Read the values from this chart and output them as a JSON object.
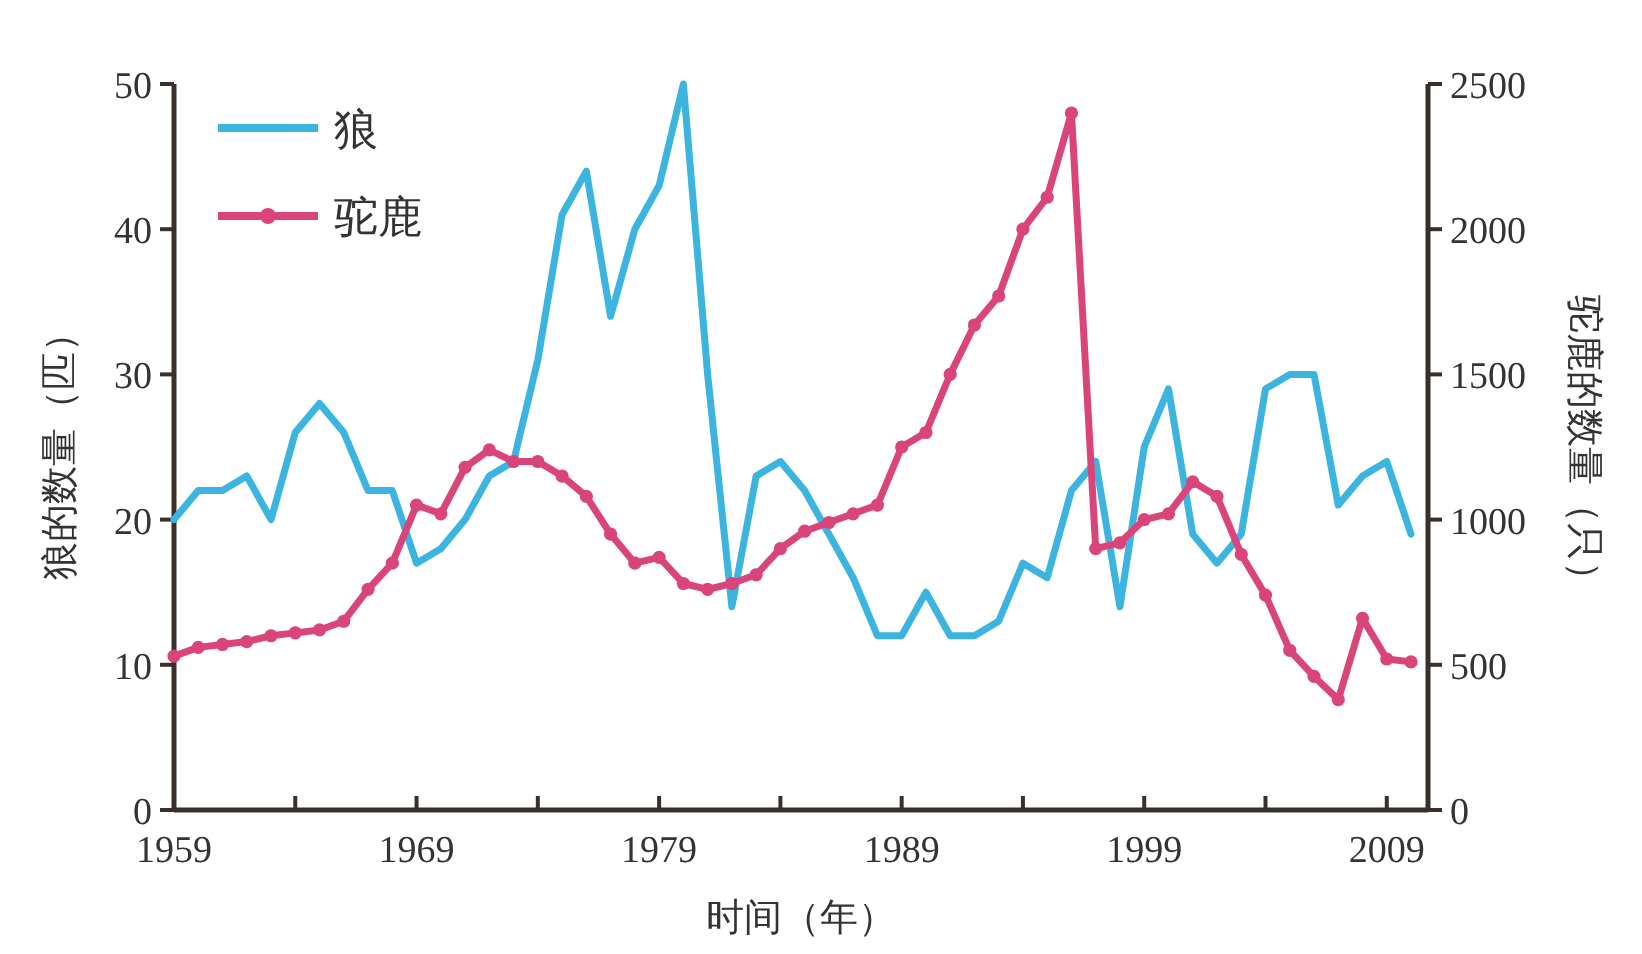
{
  "chart_data": {
    "type": "line",
    "xlabel": "时间（年）",
    "ylabel": "狼的数量（匹）",
    "y2label": "驼鹿的数量（只）",
    "x": [
      1959,
      1960,
      1961,
      1962,
      1963,
      1964,
      1965,
      1966,
      1967,
      1968,
      1969,
      1970,
      1971,
      1972,
      1973,
      1974,
      1975,
      1976,
      1977,
      1978,
      1979,
      1980,
      1981,
      1982,
      1983,
      1984,
      1985,
      1986,
      1987,
      1988,
      1989,
      1990,
      1991,
      1992,
      1993,
      1994,
      1995,
      1996,
      1997,
      1998,
      1999,
      2000,
      2001,
      2002,
      2003,
      2004,
      2005,
      2006,
      2007,
      2008,
      2009,
      2010
    ],
    "series": [
      {
        "name": "狼",
        "color": "#3bb4e0",
        "marker": "none",
        "values": [
          20,
          22,
          22,
          23,
          20,
          26,
          28,
          26,
          22,
          22,
          17,
          18,
          20,
          23,
          24,
          31,
          41,
          44,
          34,
          40,
          43,
          50,
          30,
          14,
          23,
          24,
          22,
          19,
          16,
          12,
          12,
          15,
          12,
          12,
          13,
          17,
          16,
          22,
          24,
          14,
          25,
          29,
          19,
          17,
          19,
          29,
          30,
          30,
          21,
          23,
          24,
          19
        ]
      },
      {
        "name": "驼鹿",
        "color": "#d9457a",
        "marker": "circle",
        "axis": "y2",
        "values": [
          530,
          560,
          570,
          580,
          600,
          610,
          620,
          650,
          760,
          850,
          1050,
          1020,
          1180,
          1240,
          1200,
          1200,
          1150,
          1080,
          950,
          850,
          870,
          780,
          760,
          780,
          810,
          900,
          960,
          990,
          1020,
          1050,
          1250,
          1300,
          1500,
          1670,
          1770,
          2000,
          2110,
          2400,
          900,
          920,
          1000,
          1020,
          1130,
          1080,
          880,
          740,
          550,
          460,
          380,
          660,
          520,
          510
        ]
      }
    ],
    "xlim": [
      1959,
      2010.7
    ],
    "xticks": [
      1959,
      {
        "value": 1964,
        "label": null
      },
      1969,
      {
        "value": 1974,
        "label": null
      },
      1979,
      {
        "value": 1984,
        "label": null
      },
      1989,
      {
        "value": 1994,
        "label": null
      },
      1999,
      {
        "value": 2004,
        "label": null
      },
      2009
    ],
    "ylim": [
      0,
      50
    ],
    "yticks": [
      0,
      10,
      20,
      30,
      40,
      50
    ],
    "y2lim": [
      0,
      2500
    ],
    "y2ticks": [
      0,
      500,
      1000,
      1500,
      2000,
      2500
    ],
    "grid": false,
    "legend": "top left",
    "line_style": "solid"
  }
}
